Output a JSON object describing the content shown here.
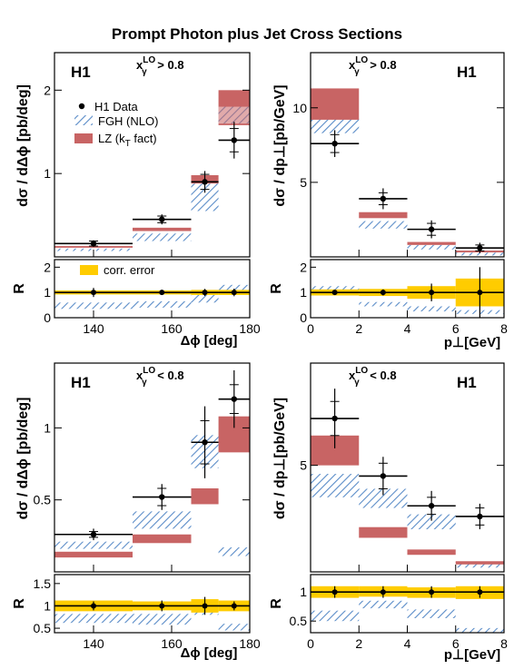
{
  "title": "Prompt Photon plus Jet Cross Sections",
  "colors": {
    "data": "#000000",
    "fgh_hatch": "#5a8cc8",
    "fgh_bg": "#ffffff",
    "lz": "#c86464",
    "corr_error": "#ffcc00"
  },
  "legend": {
    "data": "H1 Data",
    "fgh": "FGH (NLO)",
    "lz": "LZ (k",
    "lz_sub": "T",
    "lz_end": " fact)",
    "corr": "corr. error"
  },
  "chart_data": [
    {
      "id": "dphi_high",
      "type": "bar",
      "experiment": "H1",
      "region": "x_γ^LO > 0.8",
      "region_main": "x",
      "region_sub": "γ",
      "region_sup": "LO",
      "region_cond": " > 0.8",
      "ylabel": "dσ / dΔϕ [pb/deg]",
      "xlabel": "",
      "xlim": [
        130,
        180
      ],
      "ylim": [
        0,
        2.45
      ],
      "yticks": [
        1,
        2
      ],
      "data": [
        {
          "x": 140,
          "xlo": 130,
          "xhi": 150,
          "y": 0.16,
          "stat": 0.03,
          "tot": 0.04
        },
        {
          "x": 157.5,
          "xlo": 150,
          "xhi": 165,
          "y": 0.45,
          "stat": 0.04,
          "tot": 0.06
        },
        {
          "x": 168.5,
          "xlo": 165,
          "xhi": 172,
          "y": 0.9,
          "stat": 0.09,
          "tot": 0.13
        },
        {
          "x": 176,
          "xlo": 172,
          "xhi": 180,
          "y": 1.4,
          "stat": 0.14,
          "tot": 0.22
        }
      ],
      "fgh": [
        {
          "xlo": 130,
          "xhi": 150,
          "ylo": 0.07,
          "yhi": 0.1
        },
        {
          "xlo": 150,
          "xhi": 165,
          "ylo": 0.19,
          "yhi": 0.28
        },
        {
          "xlo": 165,
          "xhi": 172,
          "ylo": 0.55,
          "yhi": 0.88
        },
        {
          "xlo": 172,
          "xhi": 180,
          "ylo": 1.6,
          "yhi": 1.8
        }
      ],
      "lz": [
        {
          "xlo": 130,
          "xhi": 150,
          "ylo": 0.11,
          "yhi": 0.13
        },
        {
          "xlo": 150,
          "xhi": 165,
          "ylo": 0.31,
          "yhi": 0.35
        },
        {
          "xlo": 165,
          "xhi": 172,
          "ylo": 0.88,
          "yhi": 0.98
        },
        {
          "xlo": 172,
          "xhi": 180,
          "ylo": 1.58,
          "yhi": 2.0
        }
      ],
      "ratio": {
        "ylim": [
          0,
          2.3
        ],
        "yticks": [
          0,
          1,
          2
        ],
        "xticks": [
          140,
          160,
          180
        ],
        "xlabel": "Δϕ [deg]",
        "corr": [
          {
            "xlo": 130,
            "xhi": 150,
            "ylo": 0.92,
            "yhi": 1.08
          },
          {
            "xlo": 150,
            "xhi": 165,
            "ylo": 0.92,
            "yhi": 1.08
          },
          {
            "xlo": 165,
            "xhi": 172,
            "ylo": 0.9,
            "yhi": 1.1
          },
          {
            "xlo": 172,
            "xhi": 180,
            "ylo": 0.9,
            "yhi": 1.1
          }
        ],
        "points": [
          {
            "x": 140,
            "y": 1,
            "err": 0.18
          },
          {
            "x": 157.5,
            "y": 1,
            "err": 0.1
          },
          {
            "x": 168.5,
            "y": 1,
            "err": 0.14
          },
          {
            "x": 176,
            "y": 1,
            "err": 0.15
          }
        ],
        "fgh": [
          {
            "xlo": 130,
            "xhi": 150,
            "ylo": 0.35,
            "yhi": 0.6
          },
          {
            "xlo": 150,
            "xhi": 165,
            "ylo": 0.4,
            "yhi": 0.65
          },
          {
            "xlo": 165,
            "xhi": 172,
            "ylo": 0.6,
            "yhi": 1.0
          },
          {
            "xlo": 172,
            "xhi": 180,
            "ylo": 1.1,
            "yhi": 1.3
          }
        ]
      }
    },
    {
      "id": "pt_high",
      "type": "bar",
      "experiment": "H1",
      "region": "x_γ^LO > 0.8",
      "region_main": "x",
      "region_sub": "γ",
      "region_sup": "LO",
      "region_cond": " > 0.8",
      "ylabel": "dσ / dp⊥[pb/GeV]",
      "xlabel": "",
      "xlim": [
        0,
        8
      ],
      "ylim": [
        0,
        13.7
      ],
      "yticks": [
        5,
        10
      ],
      "data": [
        {
          "x": 1,
          "xlo": 0,
          "xhi": 2,
          "y": 7.6,
          "stat": 0.6,
          "tot": 0.9
        },
        {
          "x": 3,
          "xlo": 2,
          "xhi": 4,
          "y": 3.9,
          "stat": 0.4,
          "tot": 0.7
        },
        {
          "x": 5,
          "xlo": 4,
          "xhi": 6,
          "y": 1.85,
          "stat": 0.4,
          "tot": 0.6
        },
        {
          "x": 7,
          "xlo": 6,
          "xhi": 8,
          "y": 0.6,
          "stat": 0.2,
          "tot": 0.35
        }
      ],
      "fgh": [
        {
          "xlo": 0,
          "xhi": 2,
          "ylo": 8.3,
          "yhi": 9.6
        },
        {
          "xlo": 2,
          "xhi": 4,
          "ylo": 1.9,
          "yhi": 2.4
        },
        {
          "xlo": 4,
          "xhi": 6,
          "ylo": 0.5,
          "yhi": 0.8
        },
        {
          "xlo": 6,
          "xhi": 8,
          "ylo": 0.1,
          "yhi": 0.28
        }
      ],
      "lz": [
        {
          "xlo": 0,
          "xhi": 2,
          "ylo": 9.2,
          "yhi": 11.3
        },
        {
          "xlo": 2,
          "xhi": 4,
          "ylo": 2.6,
          "yhi": 3.0
        },
        {
          "xlo": 4,
          "xhi": 6,
          "ylo": 0.8,
          "yhi": 1.0
        },
        {
          "xlo": 6,
          "xhi": 8,
          "ylo": 0.3,
          "yhi": 0.42
        }
      ],
      "ratio": {
        "ylim": [
          0,
          2.3
        ],
        "yticks": [
          0,
          1,
          2
        ],
        "xticks": [
          0,
          2,
          4,
          6,
          8
        ],
        "xlabel": "p⊥[GeV]",
        "corr": [
          {
            "xlo": 0,
            "xhi": 2,
            "ylo": 0.88,
            "yhi": 1.12
          },
          {
            "xlo": 2,
            "xhi": 4,
            "ylo": 0.86,
            "yhi": 1.14
          },
          {
            "xlo": 4,
            "xhi": 6,
            "ylo": 0.75,
            "yhi": 1.25
          },
          {
            "xlo": 6,
            "xhi": 8,
            "ylo": 0.45,
            "yhi": 1.55
          }
        ],
        "points": [
          {
            "x": 1,
            "y": 1,
            "err": 0.1
          },
          {
            "x": 3,
            "y": 1,
            "err": 0.12
          },
          {
            "x": 5,
            "y": 1,
            "err": 0.35
          },
          {
            "x": 7,
            "y": 1,
            "err": 1.0
          }
        ],
        "fgh": [
          {
            "xlo": 0,
            "xhi": 2,
            "ylo": 1.05,
            "yhi": 1.25
          },
          {
            "xlo": 2,
            "xhi": 4,
            "ylo": 0.45,
            "yhi": 0.62
          },
          {
            "xlo": 4,
            "xhi": 6,
            "ylo": 0.25,
            "yhi": 0.45
          },
          {
            "xlo": 6,
            "xhi": 8,
            "ylo": 0.15,
            "yhi": 0.3
          }
        ]
      }
    },
    {
      "id": "dphi_low",
      "type": "bar",
      "experiment": "H1",
      "region": "x_γ^LO < 0.8",
      "region_main": "x",
      "region_sub": "γ",
      "region_sup": "LO",
      "region_cond": " < 0.8",
      "ylabel": "dσ / dΔϕ [pb/deg]",
      "xlabel": "",
      "xlim": [
        130,
        180
      ],
      "ylim": [
        0,
        1.45
      ],
      "yticks": [
        0.5,
        1
      ],
      "ytick_labels": [
        "0.5",
        "1"
      ],
      "data": [
        {
          "x": 140,
          "xlo": 130,
          "xhi": 150,
          "y": 0.26,
          "stat": 0.02,
          "tot": 0.04
        },
        {
          "x": 157.5,
          "xlo": 150,
          "xhi": 165,
          "y": 0.52,
          "stat": 0.06,
          "tot": 0.09
        },
        {
          "x": 168.5,
          "xlo": 165,
          "xhi": 172,
          "y": 0.9,
          "stat": 0.15,
          "tot": 0.25
        },
        {
          "x": 176,
          "xlo": 172,
          "xhi": 180,
          "y": 1.2,
          "stat": 0.1,
          "tot": 0.2
        }
      ],
      "fgh": [
        {
          "xlo": 130,
          "xhi": 150,
          "ylo": 0.16,
          "yhi": 0.21
        },
        {
          "xlo": 150,
          "xhi": 165,
          "ylo": 0.3,
          "yhi": 0.42
        },
        {
          "xlo": 165,
          "xhi": 172,
          "ylo": 0.72,
          "yhi": 0.95
        },
        {
          "xlo": 172,
          "xhi": 180,
          "ylo": 0.11,
          "yhi": 0.17
        }
      ],
      "lz": [
        {
          "xlo": 130,
          "xhi": 150,
          "ylo": 0.1,
          "yhi": 0.14
        },
        {
          "xlo": 150,
          "xhi": 165,
          "ylo": 0.2,
          "yhi": 0.26
        },
        {
          "xlo": 165,
          "xhi": 172,
          "ylo": 0.47,
          "yhi": 0.58
        },
        {
          "xlo": 172,
          "xhi": 180,
          "ylo": 0.83,
          "yhi": 1.08
        }
      ],
      "ratio": {
        "ylim": [
          0.4,
          1.7
        ],
        "yticks": [
          0.5,
          1,
          1.5
        ],
        "ytick_labels": [
          "0.5",
          "1",
          "1.5"
        ],
        "xticks": [
          140,
          160,
          180
        ],
        "xlabel": "Δϕ [deg]",
        "corr": [
          {
            "xlo": 130,
            "xhi": 150,
            "ylo": 0.88,
            "yhi": 1.12
          },
          {
            "xlo": 150,
            "xhi": 165,
            "ylo": 0.9,
            "yhi": 1.1
          },
          {
            "xlo": 165,
            "xhi": 172,
            "ylo": 0.85,
            "yhi": 1.15
          },
          {
            "xlo": 172,
            "xhi": 180,
            "ylo": 0.88,
            "yhi": 1.12
          }
        ],
        "points": [
          {
            "x": 140,
            "y": 1,
            "err": 0.1
          },
          {
            "x": 157.5,
            "y": 1,
            "err": 0.12
          },
          {
            "x": 168.5,
            "y": 1,
            "err": 0.2
          },
          {
            "x": 176,
            "y": 1,
            "err": 0.1
          }
        ],
        "fgh": [
          {
            "xlo": 130,
            "xhi": 150,
            "ylo": 0.62,
            "yhi": 0.82
          },
          {
            "xlo": 150,
            "xhi": 165,
            "ylo": 0.58,
            "yhi": 0.82
          },
          {
            "xlo": 165,
            "xhi": 172,
            "ylo": 0.8,
            "yhi": 1.05
          },
          {
            "xlo": 172,
            "xhi": 180,
            "ylo": 0.45,
            "yhi": 0.6
          }
        ]
      }
    },
    {
      "id": "pt_low",
      "type": "bar",
      "experiment": "H1",
      "region": "x_γ^LO < 0.8",
      "region_main": "x",
      "region_sub": "γ",
      "region_sup": "LO",
      "region_cond": " < 0.8",
      "ylabel": "dσ / dp⊥[pb/GeV]",
      "xlabel": "",
      "xlim": [
        0,
        8
      ],
      "ylim": [
        0,
        9.8
      ],
      "yticks": [
        5
      ],
      "data": [
        {
          "x": 1,
          "xlo": 0,
          "xhi": 2,
          "y": 7.2,
          "stat": 0.8,
          "tot": 1.4
        },
        {
          "x": 3,
          "xlo": 2,
          "xhi": 4,
          "y": 4.5,
          "stat": 0.6,
          "tot": 0.9
        },
        {
          "x": 5,
          "xlo": 4,
          "xhi": 6,
          "y": 3.1,
          "stat": 0.4,
          "tot": 0.7
        },
        {
          "x": 7,
          "xlo": 6,
          "xhi": 8,
          "y": 2.6,
          "stat": 0.4,
          "tot": 0.6
        }
      ],
      "fgh": [
        {
          "xlo": 0,
          "xhi": 2,
          "ylo": 3.5,
          "yhi": 4.6
        },
        {
          "xlo": 2,
          "xhi": 4,
          "ylo": 3.0,
          "yhi": 3.9
        },
        {
          "xlo": 4,
          "xhi": 6,
          "ylo": 2.0,
          "yhi": 2.7
        },
        {
          "xlo": 6,
          "xhi": 8,
          "ylo": 0.2,
          "yhi": 0.4
        }
      ],
      "lz": [
        {
          "xlo": 0,
          "xhi": 2,
          "ylo": 5.0,
          "yhi": 6.4
        },
        {
          "xlo": 2,
          "xhi": 4,
          "ylo": 1.6,
          "yhi": 2.1
        },
        {
          "xlo": 4,
          "xhi": 6,
          "ylo": 0.8,
          "yhi": 1.05
        },
        {
          "xlo": 6,
          "xhi": 8,
          "ylo": 0.35,
          "yhi": 0.5
        }
      ],
      "ratio": {
        "ylim": [
          0.3,
          1.3
        ],
        "yticks": [
          0.5,
          1
        ],
        "ytick_labels": [
          "0.5",
          "1"
        ],
        "xticks": [
          0,
          2,
          4,
          6,
          8
        ],
        "xlabel": "p⊥[GeV]",
        "corr": [
          {
            "xlo": 0,
            "xhi": 2,
            "ylo": 0.9,
            "yhi": 1.1
          },
          {
            "xlo": 2,
            "xhi": 4,
            "ylo": 0.92,
            "yhi": 1.1
          },
          {
            "xlo": 4,
            "xhi": 6,
            "ylo": 0.9,
            "yhi": 1.08
          },
          {
            "xlo": 6,
            "xhi": 8,
            "ylo": 0.88,
            "yhi": 1.1
          }
        ],
        "points": [
          {
            "x": 1,
            "y": 1,
            "err": 0.1
          },
          {
            "x": 3,
            "y": 1,
            "err": 0.1
          },
          {
            "x": 5,
            "y": 1,
            "err": 0.1
          },
          {
            "x": 7,
            "y": 1,
            "err": 0.1
          }
        ],
        "fgh": [
          {
            "xlo": 0,
            "xhi": 2,
            "ylo": 0.5,
            "yhi": 0.68
          },
          {
            "xlo": 2,
            "xhi": 4,
            "ylo": 0.72,
            "yhi": 0.85
          },
          {
            "xlo": 4,
            "xhi": 6,
            "ylo": 0.55,
            "yhi": 0.7
          },
          {
            "xlo": 6,
            "xhi": 8,
            "ylo": 0.3,
            "yhi": 0.38
          }
        ]
      }
    }
  ]
}
